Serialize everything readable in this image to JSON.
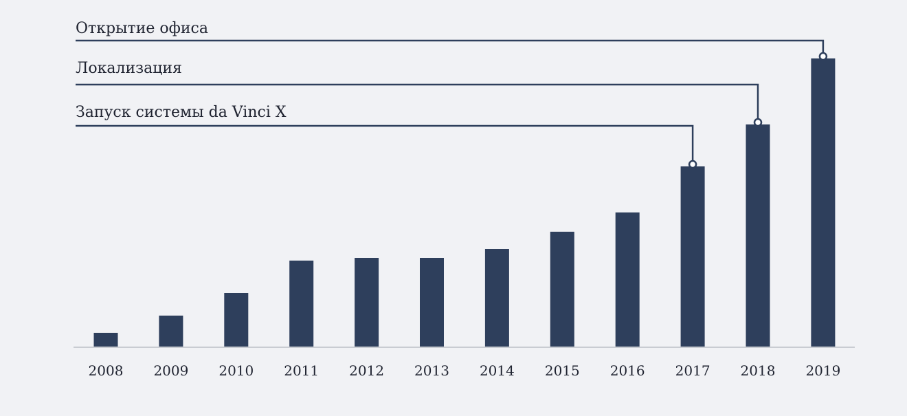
{
  "chart_data": {
    "type": "bar",
    "categories": [
      "2008",
      "2009",
      "2010",
      "2011",
      "2012",
      "2013",
      "2014",
      "2015",
      "2016",
      "2017",
      "2018",
      "2019"
    ],
    "values": [
      20,
      45,
      78,
      125,
      129,
      129,
      142,
      167,
      195,
      262,
      323,
      419
    ],
    "ylim": [
      0,
      440
    ],
    "grid": false,
    "annotations": [
      {
        "label": "Открытие офиса",
        "category": "2019"
      },
      {
        "label": "Локализация",
        "category": "2018"
      },
      {
        "label": "Запуск системы da Vinci X",
        "category": "2017"
      }
    ]
  },
  "colors": {
    "bar": "#2e3f5c",
    "leader": "#2e3f5c",
    "axis": "#c9ccd2",
    "background": "#f1f2f5"
  }
}
